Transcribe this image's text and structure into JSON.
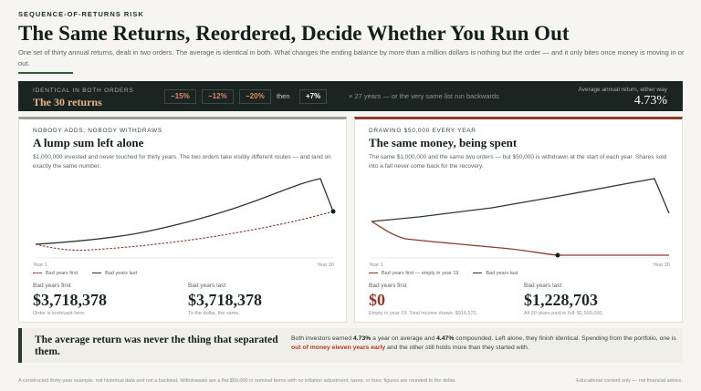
{
  "header": {
    "eyebrow": "SEQUENCE-OF-RETURNS RISK",
    "title": "The Same Returns, Reordered, Decide Whether You Run Out",
    "subtitle": "One set of thirty annual returns, dealt in two orders. The average is identical in both. What changes the ending balance by more than a million dollars is nothing but the order — and it only bites once money is moving in or out."
  },
  "band": {
    "kicker": "IDENTICAL IN BOTH ORDERS",
    "big": "The 30 returns",
    "chips": [
      "−15%",
      "−12%",
      "−20%"
    ],
    "then": "then",
    "pos_chip": "+7%",
    "note": "× 27 years  — or the very same list run backwards",
    "avg_label": "Average annual return, either way",
    "avg_value": "4.73%"
  },
  "left_panel": {
    "kicker": "NOBODY ADDS, NOBODY WITHDRAWS",
    "title": "A lump sum left alone",
    "desc": "$1,000,000 invested and never touched for thirty years. The two orders take visibly different routes — and land on exactly the same number.",
    "axis_start": "Year 1",
    "axis_end": "Year 30",
    "legend_a": "Bad years first",
    "legend_b": "Bad years last",
    "stat_a_label": "Bad years first",
    "stat_a_value": "$3,718,378",
    "stat_a_sub": "Order is irrelevant here.",
    "stat_b_label": "Bad years last",
    "stat_b_value": "$3,718,378",
    "stat_b_sub": "To the dollar, the same."
  },
  "right_panel": {
    "kicker": "DRAWING $50,000 EVERY YEAR",
    "title": "The same money, being spent",
    "desc": "The same $1,000,000 and the same two orders — but $50,000 is withdrawn at the start of each year. Shares sold into a fall never come back for the recovery.",
    "axis_start": "Year 1",
    "axis_end": "Year 30",
    "legend_a": "Bad years first — empty in year 19",
    "legend_b": "Bad years last",
    "stat_a_label": "Bad years first",
    "stat_a_value": "$0",
    "stat_a_sub": "Empty in year 19. Total income drawn: $916,572.",
    "stat_b_label": "Bad years last",
    "stat_b_value": "$1,228,703",
    "stat_b_sub": "All 30 years paid in full: $1,500,000."
  },
  "callout": {
    "head": "The average return was never the thing that separated them.",
    "body_1": "Both investors earned ",
    "body_b1": "4.73%",
    "body_2": " a year on average and ",
    "body_b2": "4.47%",
    "body_3": " compounded. Left alone, they finish identical. Spending from the portfolio, one is ",
    "body_hl": "out of money eleven years early",
    "body_4": " and the other still holds more than they started with."
  },
  "footer": {
    "left": "A constructed thirty-year example, not historical data and not a backtest. Withdrawals are a flat $50,000 in nominal terms with no inflation adjustment, taxes, or fees; figures are rounded to the dollar.",
    "right": "Educational content only — not financial advice."
  },
  "colors": {
    "accent_green": "#2f5b3a",
    "accent_red": "#8d3a2c",
    "dark": "#1a2420",
    "bad_first_line": "#8d3a2c",
    "bad_last_line": "#2a3a30"
  },
  "chart_data": [
    {
      "type": "line",
      "title": "A lump sum left alone",
      "x": [
        1,
        30
      ],
      "xlabel": "",
      "ylabel": "",
      "series": [
        {
          "name": "Bad years first",
          "y_start": 1000000,
          "y_end": 3718378
        },
        {
          "name": "Bad years last",
          "y_start": 1000000,
          "y_end": 3718378
        }
      ]
    },
    {
      "type": "line",
      "title": "The same money, being spent",
      "x": [
        1,
        30
      ],
      "xlabel": "",
      "ylabel": "",
      "series": [
        {
          "name": "Bad years first — empty in year 19",
          "y_start": 1000000,
          "y_end": 0,
          "depleted_year": 19
        },
        {
          "name": "Bad years last",
          "y_start": 1000000,
          "y_end": 1228703
        }
      ]
    }
  ]
}
